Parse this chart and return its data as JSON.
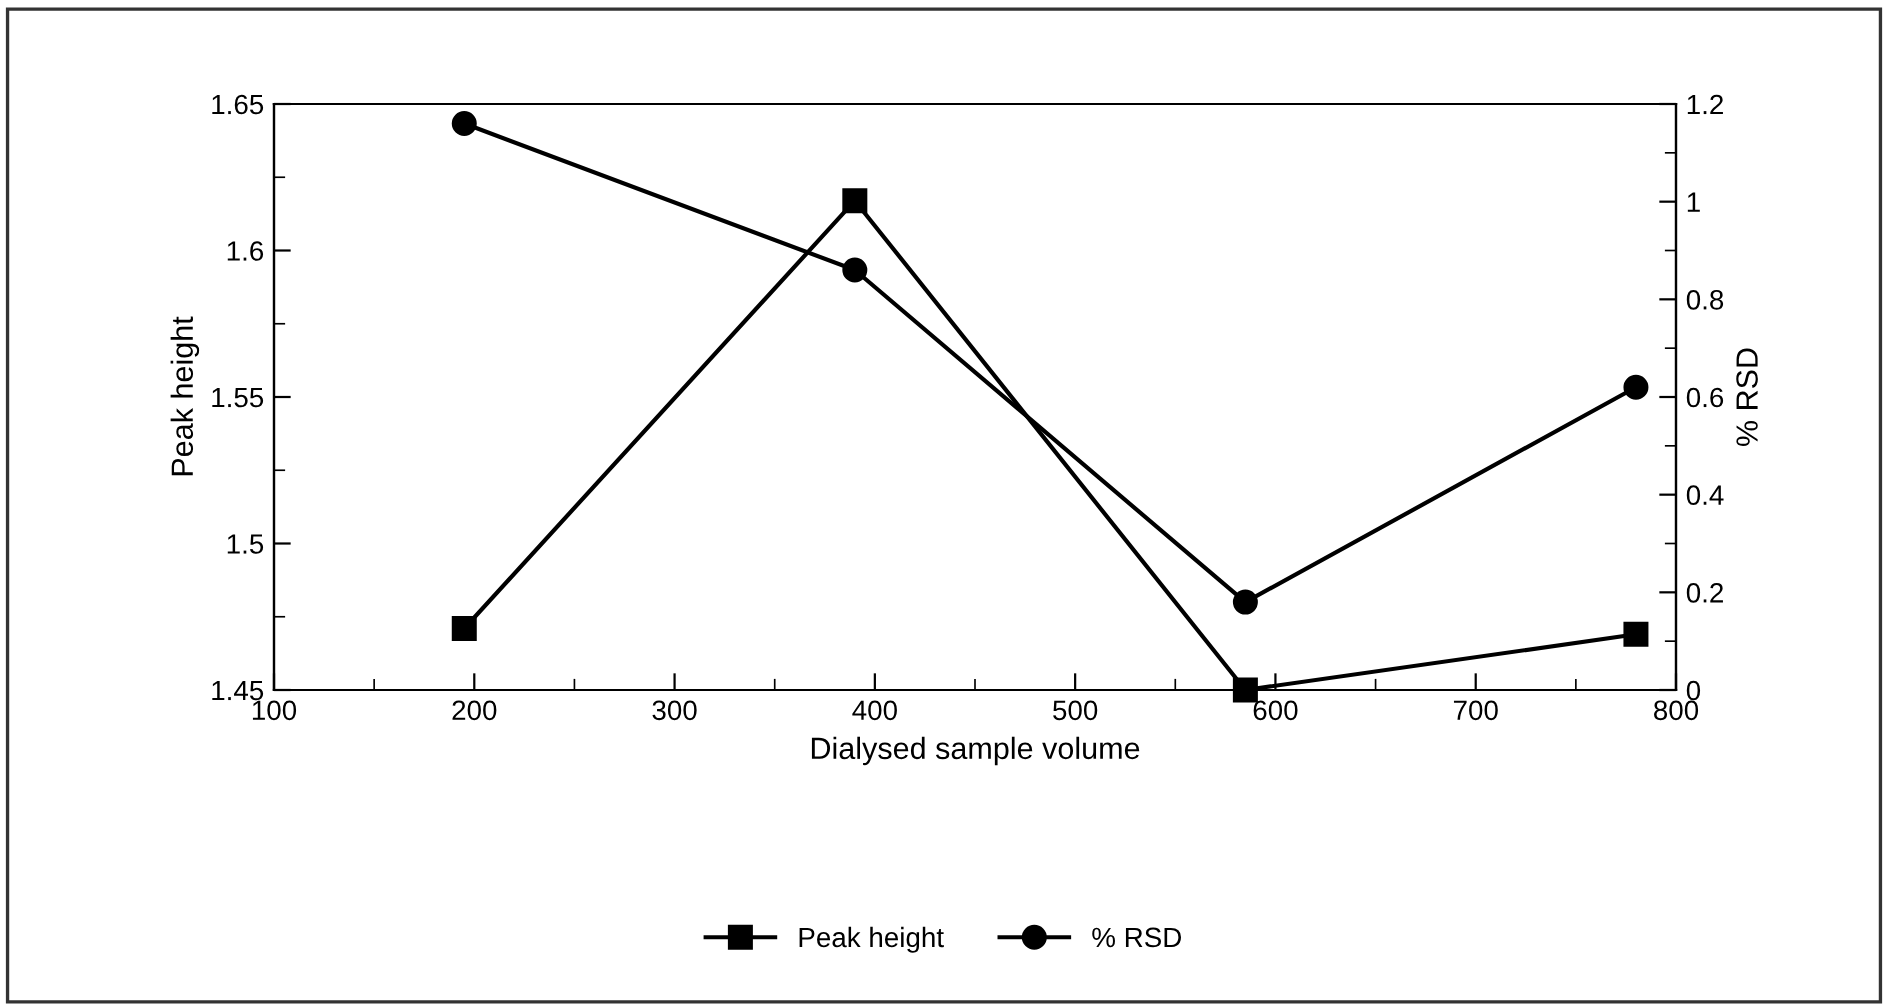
{
  "chart_data": {
    "type": "line",
    "xlabel": "Dialysed sample volume",
    "ylabel": "Peak height",
    "y2label": "% RSD",
    "x": [
      195,
      390,
      585,
      780
    ],
    "series": [
      {
        "name": "Peak height",
        "color": "#000000",
        "marker": "square",
        "values": [
          1.471,
          1.617,
          1.45,
          1.469
        ]
      },
      {
        "name": "% RSD",
        "color": "#000000",
        "marker": "circle",
        "axis": "y2",
        "values": [
          1.16,
          0.86,
          0.18,
          0.62
        ]
      }
    ],
    "xlim": [
      100,
      800
    ],
    "xticks": [
      100,
      200,
      300,
      400,
      500,
      600,
      700,
      800
    ],
    "ylim": [
      1.45,
      1.65
    ],
    "yticks": [
      1.45,
      1.5,
      1.55,
      1.6,
      1.65
    ],
    "y2lim": [
      0,
      1.2
    ],
    "y2ticks": [
      0,
      0.2,
      0.4,
      0.6,
      0.8,
      1,
      1.2
    ],
    "grid": false,
    "legend": "bottom",
    "line_style": "solid"
  }
}
